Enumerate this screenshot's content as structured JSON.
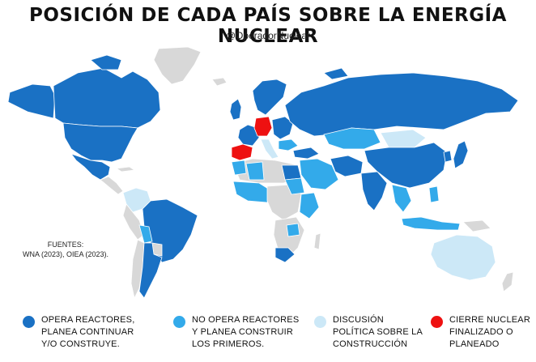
{
  "header": {
    "title": "POSICIÓN DE CADA PAÍS SOBRE LA ENERGÍA NUCLEAR",
    "subtitle": "@OperadorNuclear"
  },
  "sources": {
    "label": "FUENTES:",
    "text": "WNA (2023), OIEA (2023)."
  },
  "colors": {
    "operates": "#1a71c4",
    "no_reactors_planning": "#33aaea",
    "discussion": "#cce8f7",
    "phase_out": "#ee1111",
    "no_position": "#d8d8d8",
    "background": "#ffffff"
  },
  "legend": [
    {
      "key": "operates",
      "label": "OPERA REACTORES,\nPLANEA CONTINUAR\nY/O CONSTRUYE."
    },
    {
      "key": "no_reactors_planning",
      "label": "NO OPERA REACTORES\nY PLANEA CONSTRUIR\nLOS PRIMEROS."
    },
    {
      "key": "discussion",
      "label": "DISCUSIÓN\nPOLÍTICA SOBRE LA\nCONSTRUCCIÓN"
    },
    {
      "key": "phase_out",
      "label": "CIERRE NUCLEAR\nFINALIZADO O\nPLANEADO"
    }
  ]
}
